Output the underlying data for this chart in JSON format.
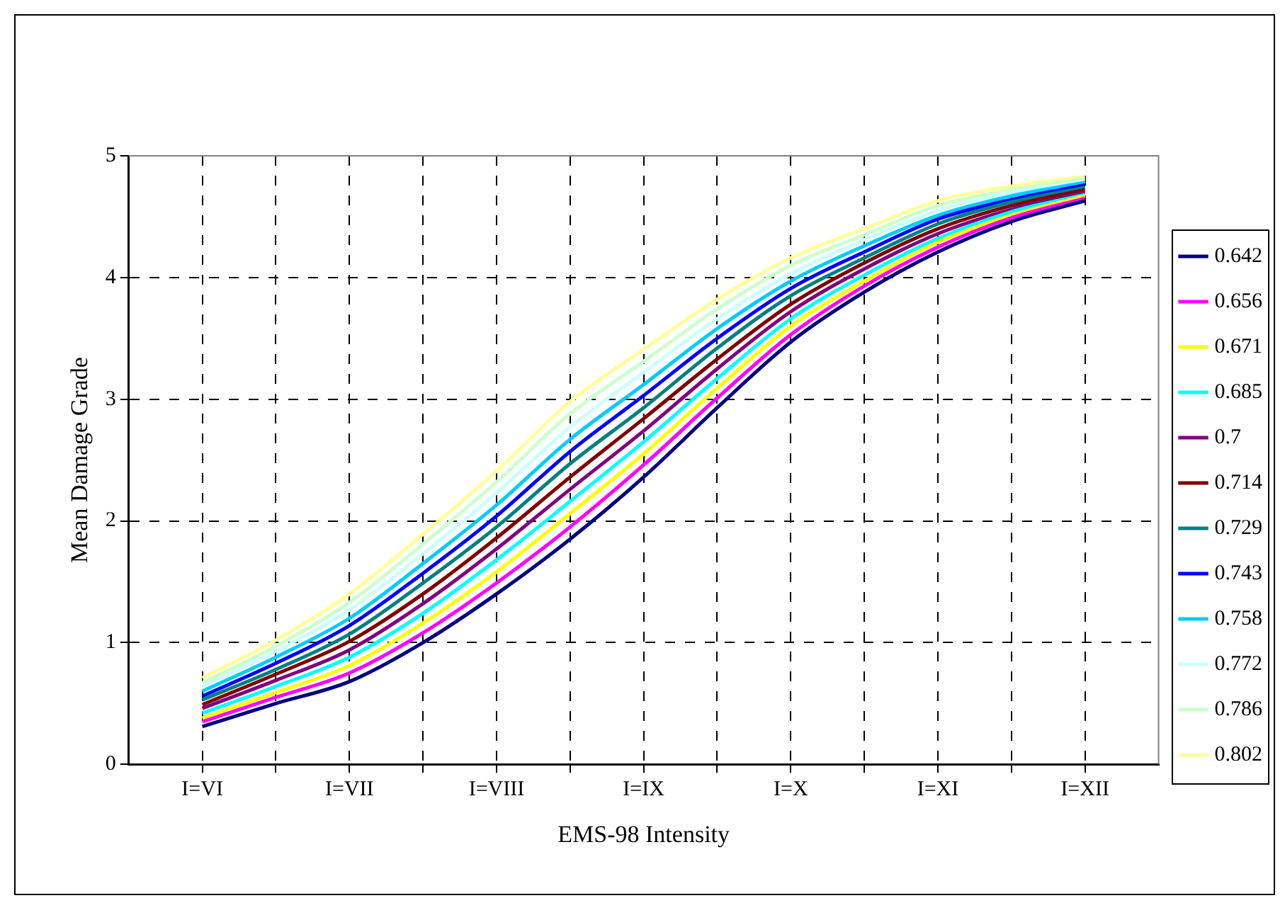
{
  "chart_data": {
    "type": "line",
    "xlabel": "EMS-98 Intensity",
    "ylabel": "Mean Damage Grade",
    "categories": [
      "I=VI",
      null,
      "I=VII",
      null,
      "I=VIII",
      null,
      "I=IX",
      null,
      "I=X",
      null,
      "I=XI",
      null,
      "I=XII"
    ],
    "ylim": [
      0,
      5
    ],
    "yticks": [
      0,
      1,
      2,
      3,
      4,
      5
    ],
    "grid": true,
    "legend": "right",
    "series": [
      {
        "name": "0.642",
        "color": "#000080",
        "values": [
          0.31,
          0.5,
          0.68,
          1.0,
          1.4,
          1.85,
          2.36,
          2.93,
          3.47,
          3.88,
          4.21,
          4.46,
          4.63
        ]
      },
      {
        "name": "0.656",
        "color": "#ff00ff",
        "values": [
          0.35,
          0.55,
          0.75,
          1.08,
          1.49,
          1.95,
          2.46,
          3.01,
          3.53,
          3.93,
          4.25,
          4.49,
          4.65
        ]
      },
      {
        "name": "0.671",
        "color": "#ffff00",
        "values": [
          0.38,
          0.59,
          0.81,
          1.16,
          1.58,
          2.06,
          2.55,
          3.09,
          3.6,
          3.97,
          4.29,
          4.51,
          4.67
        ]
      },
      {
        "name": "0.685",
        "color": "#00ffff",
        "values": [
          0.42,
          0.64,
          0.88,
          1.24,
          1.68,
          2.16,
          2.65,
          3.17,
          3.66,
          4.02,
          4.32,
          4.54,
          4.68
        ]
      },
      {
        "name": "0.7",
        "color": "#800080",
        "values": [
          0.46,
          0.69,
          0.94,
          1.32,
          1.77,
          2.26,
          2.74,
          3.25,
          3.72,
          4.07,
          4.36,
          4.56,
          4.7
        ]
      },
      {
        "name": "0.714",
        "color": "#800000",
        "values": [
          0.49,
          0.74,
          1.01,
          1.4,
          1.86,
          2.36,
          2.84,
          3.33,
          3.78,
          4.12,
          4.4,
          4.59,
          4.72
        ]
      },
      {
        "name": "0.729",
        "color": "#008080",
        "values": [
          0.53,
          0.78,
          1.07,
          1.49,
          1.95,
          2.47,
          2.93,
          3.42,
          3.85,
          4.16,
          4.44,
          4.62,
          4.74
        ]
      },
      {
        "name": "0.743",
        "color": "#0000ff",
        "values": [
          0.56,
          0.83,
          1.14,
          1.57,
          2.04,
          2.57,
          3.03,
          3.5,
          3.91,
          4.21,
          4.48,
          4.64,
          4.76
        ]
      },
      {
        "name": "0.758",
        "color": "#00ccff",
        "values": [
          0.6,
          0.88,
          1.2,
          1.65,
          2.13,
          2.67,
          3.12,
          3.58,
          3.97,
          4.26,
          4.51,
          4.67,
          4.78
        ]
      },
      {
        "name": "0.772",
        "color": "#ccffff",
        "values": [
          0.64,
          0.93,
          1.27,
          1.73,
          2.23,
          2.77,
          3.22,
          3.66,
          4.03,
          4.31,
          4.55,
          4.7,
          4.79
        ]
      },
      {
        "name": "0.786",
        "color": "#ccffcc",
        "values": [
          0.67,
          0.97,
          1.33,
          1.81,
          2.32,
          2.88,
          3.31,
          3.74,
          4.1,
          4.35,
          4.59,
          4.72,
          4.81
        ]
      },
      {
        "name": "0.802",
        "color": "#ffff99",
        "values": [
          0.71,
          1.02,
          1.4,
          1.89,
          2.41,
          2.98,
          3.41,
          3.82,
          4.16,
          4.4,
          4.63,
          4.75,
          4.83
        ]
      }
    ]
  }
}
